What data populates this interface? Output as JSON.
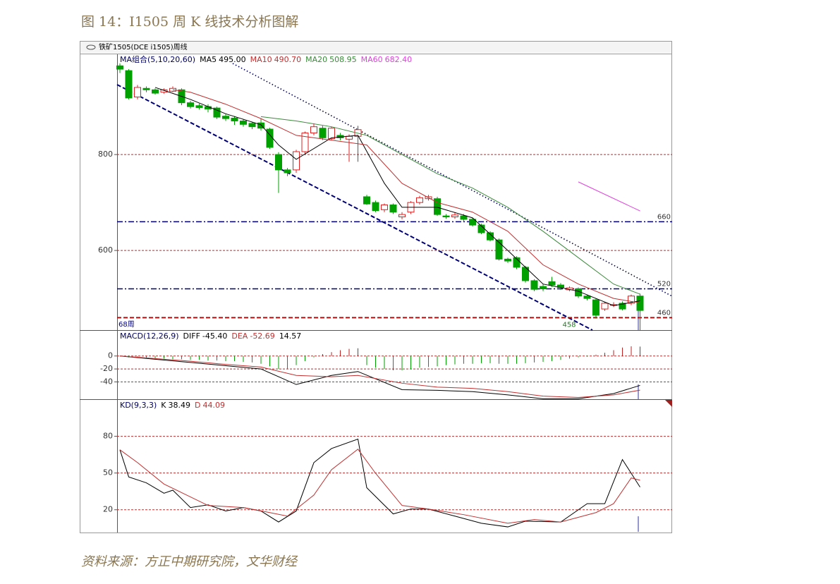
{
  "caption": "图 14：I1505 周 K 线技术分析图解",
  "window_title": "铁矿1505(DCE i1505)周线",
  "source": "资料来源：方正中期研究院，文华财经",
  "chart_data": [
    {
      "type": "candlestick",
      "title": "MA组合(5,10,20,60)",
      "ohlc": [
        [
          985,
          990,
          970,
          978
        ],
        [
          975,
          978,
          915,
          918
        ],
        [
          920,
          945,
          915,
          940
        ],
        [
          938,
          942,
          930,
          935
        ],
        [
          935,
          938,
          925,
          928
        ],
        [
          930,
          938,
          927,
          935
        ],
        [
          932,
          942,
          930,
          938
        ],
        [
          935,
          938,
          903,
          908
        ],
        [
          908,
          912,
          896,
          900
        ],
        [
          902,
          906,
          894,
          898
        ],
        [
          900,
          905,
          888,
          895
        ],
        [
          897,
          900,
          874,
          878
        ],
        [
          880,
          884,
          870,
          875
        ],
        [
          876,
          880,
          862,
          870
        ],
        [
          870,
          873,
          858,
          863
        ],
        [
          865,
          868,
          853,
          858
        ],
        [
          866,
          875,
          850,
          855
        ],
        [
          853,
          856,
          812,
          815
        ],
        [
          800,
          805,
          720,
          768
        ],
        [
          768,
          772,
          755,
          762
        ],
        [
          768,
          810,
          762,
          806
        ],
        [
          806,
          848,
          802,
          845
        ],
        [
          845,
          865,
          840,
          858
        ],
        [
          855,
          860,
          830,
          835
        ],
        [
          833,
          858,
          830,
          855
        ],
        [
          840,
          845,
          830,
          835
        ],
        [
          832,
          842,
          785,
          838
        ],
        [
          838,
          860,
          785,
          852
        ],
        [
          712,
          716,
          695,
          697
        ],
        [
          700,
          704,
          680,
          683
        ],
        [
          685,
          698,
          680,
          695
        ],
        [
          695,
          698,
          676,
          680
        ],
        [
          670,
          680,
          665,
          675
        ],
        [
          680,
          703,
          676,
          700
        ],
        [
          700,
          714,
          696,
          710
        ],
        [
          708,
          716,
          704,
          712
        ],
        [
          708,
          712,
          672,
          675
        ],
        [
          672,
          676,
          666,
          670
        ],
        [
          670,
          680,
          666,
          674
        ],
        [
          672,
          676,
          661,
          665
        ],
        [
          665,
          668,
          650,
          653
        ],
        [
          653,
          656,
          634,
          637
        ],
        [
          637,
          640,
          619,
          622
        ],
        [
          622,
          625,
          579,
          582
        ],
        [
          582,
          585,
          574,
          578
        ],
        [
          585,
          588,
          561,
          565
        ],
        [
          565,
          568,
          533,
          537
        ],
        [
          537,
          540,
          515,
          519
        ],
        [
          525,
          530,
          515,
          520
        ],
        [
          535,
          545,
          524,
          528
        ],
        [
          528,
          532,
          518,
          523
        ],
        [
          518,
          525,
          515,
          522
        ],
        [
          520,
          523,
          501,
          505
        ],
        [
          505,
          508,
          496,
          500
        ],
        [
          497,
          500,
          458,
          465
        ],
        [
          478,
          493,
          474,
          490
        ],
        [
          486,
          492,
          482,
          487
        ],
        [
          490,
          494,
          475,
          478
        ],
        [
          490,
          508,
          486,
          505
        ],
        [
          505,
          510,
          434,
          475
        ]
      ],
      "up_color": "#e02020",
      "down_color": "#00a000",
      "ylim": [
        434,
        1009
      ],
      "yticks": [
        600,
        800
      ],
      "grid_color": "#b03030",
      "series": [
        {
          "name": "MA5",
          "readout": "495.00",
          "color": "#000000",
          "x": [
            4,
            8,
            12,
            16,
            18,
            20,
            24,
            27,
            30,
            32,
            36,
            40,
            44,
            48,
            52,
            56,
            59
          ],
          "values": [
            940,
            915,
            885,
            862,
            820,
            790,
            835,
            840,
            740,
            690,
            690,
            668,
            600,
            530,
            515,
            485,
            495
          ]
        },
        {
          "name": "MA10",
          "readout": "490.70",
          "color": "#c03030",
          "x": [
            6,
            8,
            12,
            16,
            20,
            24,
            28,
            32,
            36,
            40,
            44,
            48,
            52,
            56,
            59
          ],
          "values": [
            935,
            930,
            905,
            875,
            840,
            830,
            820,
            740,
            700,
            680,
            640,
            570,
            530,
            500,
            490.7
          ]
        },
        {
          "name": "MA20",
          "readout": "508.95",
          "color": "#3a8a3a",
          "x": [
            16,
            20,
            24,
            28,
            32,
            36,
            40,
            44,
            48,
            52,
            56,
            59
          ],
          "values": [
            879,
            870,
            858,
            840,
            800,
            760,
            730,
            690,
            640,
            585,
            530,
            508.95
          ]
        },
        {
          "name": "MA60",
          "readout": "682.40",
          "color": "#e040e0",
          "x": [
            52,
            59
          ],
          "values": [
            743,
            682.4
          ]
        }
      ],
      "levels": [
        {
          "value": 660,
          "color": "#000080"
        },
        {
          "value": 520,
          "color": "#000080"
        },
        {
          "value": 460,
          "color": "#b01010"
        }
      ],
      "low_mark": 458,
      "period_label": "68周"
    },
    {
      "type": "macd",
      "title": "MACD(12,26,9)",
      "histogram": [
        0,
        -2,
        -3,
        -3,
        -4,
        -4,
        -5,
        -5,
        -6,
        -6,
        -7,
        -7,
        -8,
        -8,
        -9,
        -10,
        -12,
        -16,
        -20,
        -20,
        -14,
        -8,
        -2,
        3,
        6,
        9,
        11,
        12,
        -14,
        -18,
        -20,
        -22,
        -22,
        -20,
        -18,
        -17,
        -16,
        -14,
        -13,
        -12,
        -12,
        -11,
        -11,
        -12,
        -12,
        -12,
        -11,
        -10,
        -9,
        -8,
        -6,
        -4,
        -2,
        -1,
        2,
        5,
        9,
        13,
        15,
        14.57
      ],
      "histogram_readout": "14.57",
      "up_color": "#c02020",
      "down_color": "#00a000",
      "series": [
        {
          "name": "DIFF",
          "readout": "-45.40",
          "color": "#000000",
          "x": [
            0,
            4,
            8,
            12,
            16,
            20,
            24,
            27,
            32,
            36,
            40,
            44,
            48,
            52,
            56,
            59
          ],
          "values": [
            0,
            -5,
            -10,
            -15,
            -20,
            -44,
            -30,
            -24,
            -52,
            -53,
            -55,
            -60,
            -66,
            -66,
            -58,
            -45.4
          ]
        },
        {
          "name": "DEA",
          "readout": "-52.69",
          "color": "#c03030",
          "x": [
            0,
            4,
            8,
            12,
            16,
            20,
            24,
            27,
            32,
            36,
            40,
            44,
            48,
            52,
            56,
            59
          ],
          "values": [
            0,
            -4,
            -8,
            -13,
            -17,
            -30,
            -32,
            -30,
            -42,
            -48,
            -50,
            -55,
            -62,
            -64,
            -60,
            -52.69
          ]
        }
      ],
      "ylim": [
        -66.7,
        38.9
      ],
      "yticks": [
        0,
        -20,
        -40
      ],
      "grid_color": "#b03030"
    },
    {
      "type": "kd",
      "title": "KD(9,3,3)",
      "series": [
        {
          "name": "K",
          "readout": "38.49",
          "color": "#000000",
          "x": [
            0,
            1,
            3,
            5,
            6,
            8,
            10,
            12,
            14,
            16,
            18,
            20,
            22,
            24,
            27,
            28,
            31,
            33,
            35,
            38,
            41,
            44,
            46,
            50,
            53,
            55,
            57,
            59
          ],
          "values": [
            69,
            46.8,
            42,
            33.5,
            36,
            21.8,
            24,
            19,
            21.8,
            19,
            10,
            19,
            58.5,
            70,
            77.7,
            38,
            16.6,
            20.6,
            20.6,
            14.8,
            9,
            6,
            10.7,
            10,
            25,
            25,
            61,
            38.49
          ]
        },
        {
          "name": "D",
          "readout": "44.09",
          "color": "#c03030",
          "x": [
            0,
            2,
            5,
            7,
            10,
            14,
            17,
            19,
            22,
            24,
            27,
            29,
            32,
            35,
            39,
            44,
            47,
            50,
            54,
            56,
            58,
            59
          ],
          "values": [
            69,
            58.5,
            41,
            34,
            23.5,
            21.8,
            17.7,
            14.8,
            32,
            52.7,
            69.5,
            49.8,
            23.5,
            20.6,
            16,
            9,
            12,
            10,
            17.7,
            25,
            46,
            44.09
          ]
        }
      ],
      "ylim": [
        2,
        109.7
      ],
      "yticks": [
        80,
        50,
        20
      ],
      "grid_color": "#b03030"
    }
  ]
}
